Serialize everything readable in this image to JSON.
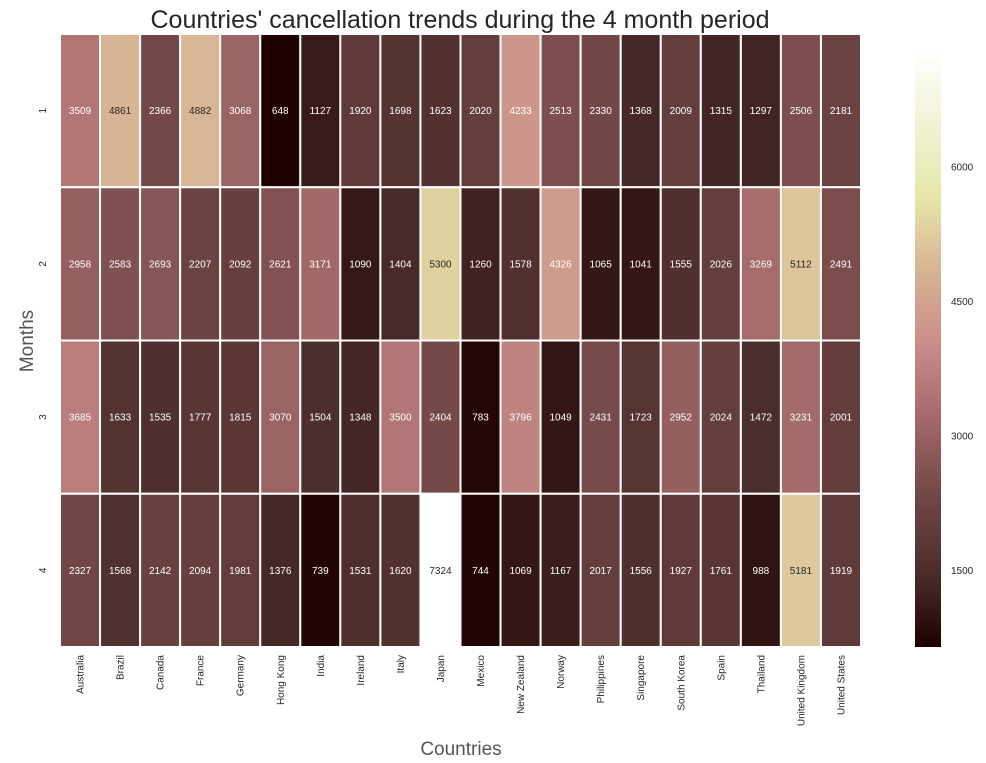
{
  "chart_data": {
    "type": "heatmap",
    "title": "Countries' cancellation trends during the 4 month period",
    "xlabel": "Countries",
    "ylabel": "Months",
    "x_categories": [
      "Australia",
      "Brazil",
      "Canada",
      "France",
      "Germany",
      "Hong Kong",
      "India",
      "Ireland",
      "Italy",
      "Japan",
      "Mexico",
      "New Zealand",
      "Norway",
      "Philippines",
      "Singapore",
      "South Korea",
      "Spain",
      "Thailand",
      "United Kingdom",
      "United States"
    ],
    "y_categories": [
      "1",
      "2",
      "3",
      "4"
    ],
    "values": [
      [
        3509,
        4861,
        2366,
        4882,
        3068,
        648,
        1127,
        1920,
        1698,
        1623,
        2020,
        4233,
        2513,
        2330,
        1368,
        2009,
        1315,
        1297,
        2506,
        2181
      ],
      [
        2958,
        2583,
        2693,
        2207,
        2092,
        2621,
        3171,
        1090,
        1404,
        5300,
        1260,
        1578,
        4326,
        1065,
        1041,
        1555,
        2026,
        3269,
        5112,
        2491
      ],
      [
        3685,
        1633,
        1535,
        1777,
        1815,
        3070,
        1504,
        1348,
        3500,
        2404,
        783,
        3796,
        1049,
        2431,
        1723,
        2952,
        2024,
        1472,
        3231,
        2001
      ],
      [
        2327,
        1568,
        2142,
        2094,
        1981,
        1376,
        739,
        1531,
        1620,
        7324,
        744,
        1069,
        1167,
        2017,
        1556,
        1927,
        1761,
        988,
        5181,
        1919
      ]
    ],
    "colorbar": {
      "vmin": 648,
      "vmax": 7324,
      "ticks": [
        1500,
        3000,
        4500,
        6000
      ],
      "tick_labels": [
        "1500",
        "3000",
        "4500",
        "6000"
      ]
    },
    "colormap": "pink",
    "grid": false,
    "legend": "colorbar-right"
  }
}
